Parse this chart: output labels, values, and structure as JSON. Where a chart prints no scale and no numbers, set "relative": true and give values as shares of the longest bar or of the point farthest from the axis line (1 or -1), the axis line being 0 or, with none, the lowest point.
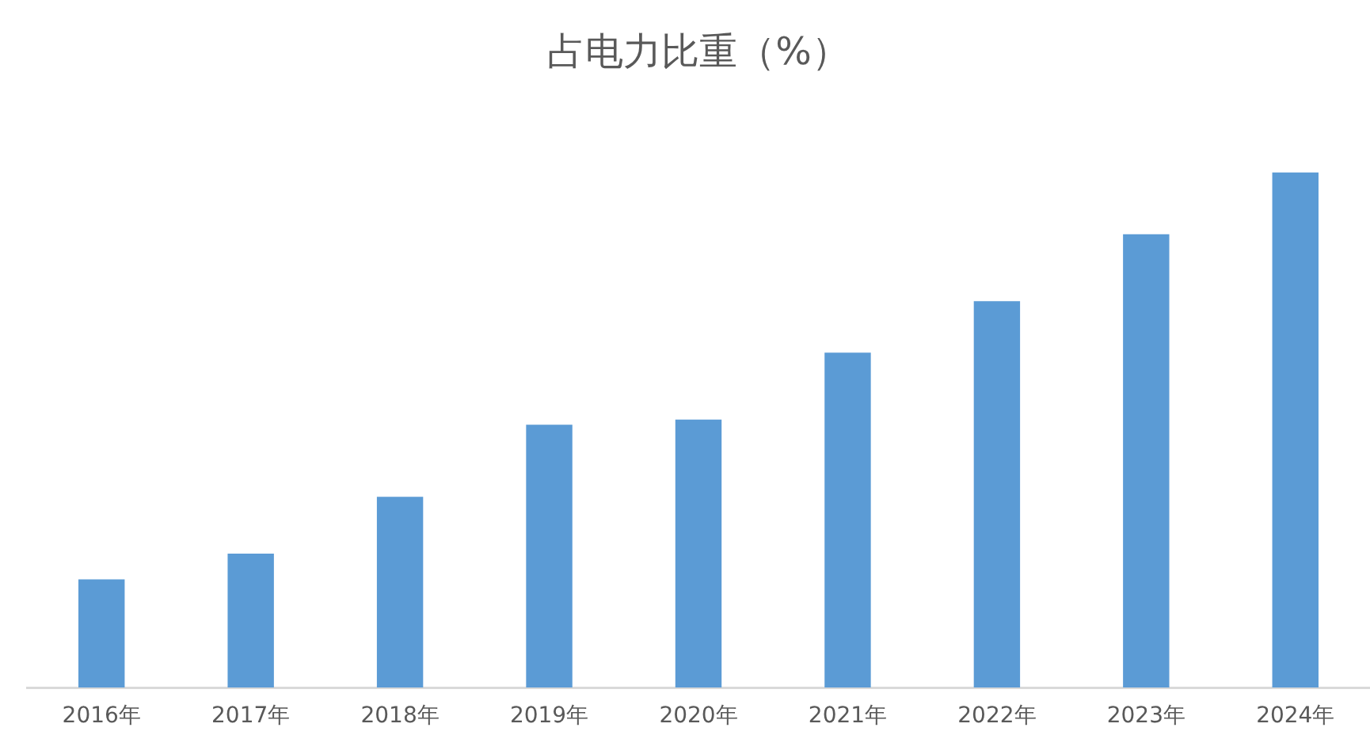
{
  "chart_data": {
    "type": "bar",
    "title": "占电力比重（%）",
    "categories": [
      "2016年",
      "2017年",
      "2018年",
      "2019年",
      "2020年",
      "2021年",
      "2022年",
      "2023年",
      "2024年"
    ],
    "values": [
      0.21,
      0.26,
      0.37,
      0.51,
      0.52,
      0.65,
      0.75,
      0.88,
      1
    ],
    "color": "#5b9bd5",
    "relative": true
  }
}
